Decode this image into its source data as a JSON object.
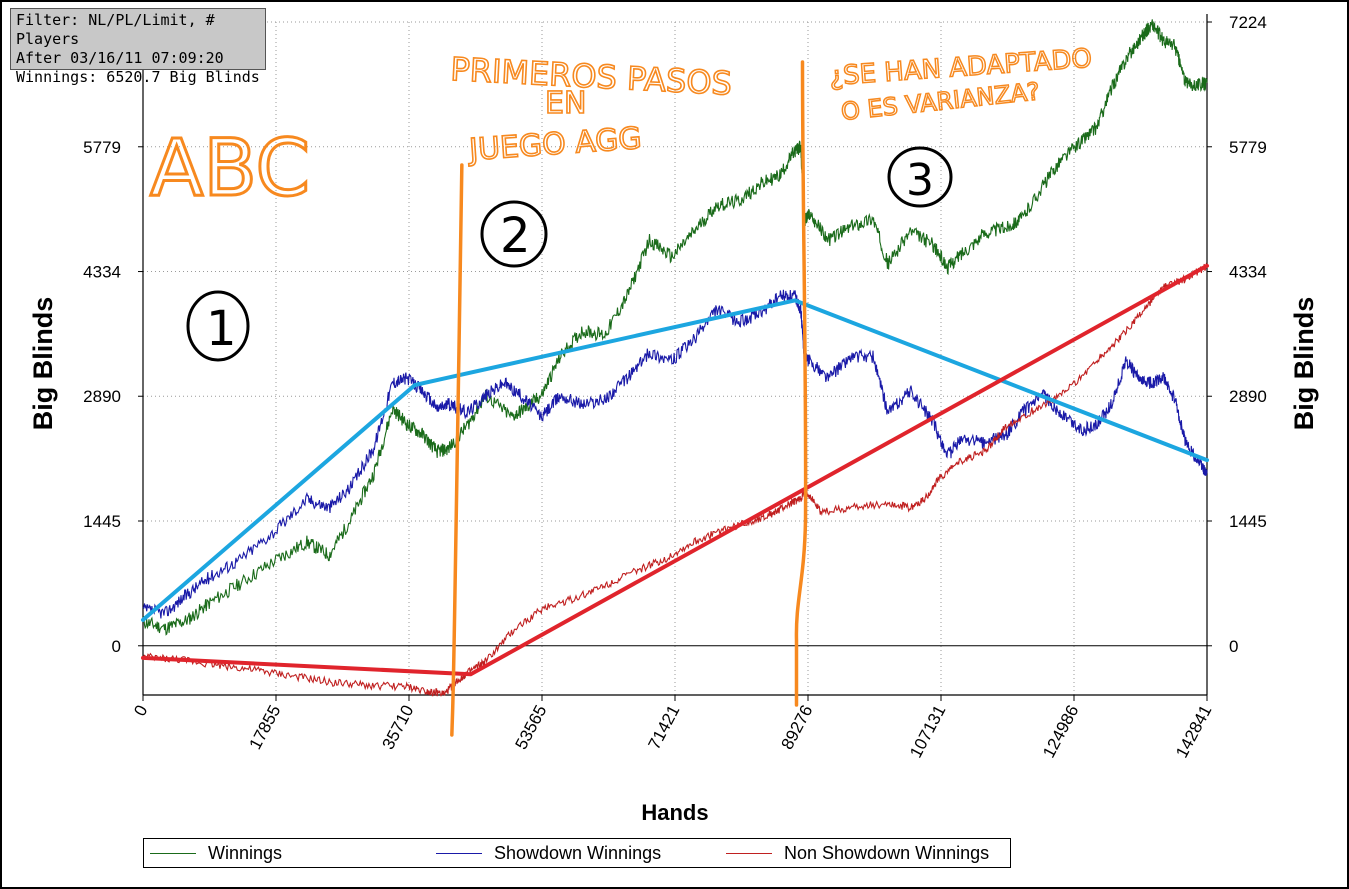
{
  "filter_box": {
    "line1": "Filter: NL/PL/Limit, # Players",
    "line2": "After 03/16/11 07:09:20",
    "line3": "Winnings: 6520.7 Big Blinds"
  },
  "annotations": {
    "abc": "ABC",
    "circle1": "1",
    "circle2": "2",
    "circle3": "3",
    "phase2_line1": "PRIMEROS PASOS",
    "phase2_line2": "EN",
    "phase2_line3": "JUEGO AGG",
    "phase3_line1": "¿SE HAN ADAPTADO",
    "phase3_line2": "O ES VARIANZA?"
  },
  "colors": {
    "winnings": "#1a6b1a",
    "showdown": "#1a1aa8",
    "non_showdown": "#c02020",
    "trend_blue": "#1ca6e0",
    "trend_red": "#e0242c",
    "marker_orange": "#f7891f"
  },
  "chart_data": {
    "type": "line",
    "xlabel": "Hands",
    "ylabel": "Big Blinds",
    "xlim": [
      0,
      142841
    ],
    "ylim": [
      -570,
      7224
    ],
    "x_ticks": [
      0,
      17855,
      35710,
      53565,
      71421,
      89276,
      107131,
      124986,
      142841
    ],
    "y_ticks": [
      0,
      1445,
      2890,
      4334,
      5779,
      7224
    ],
    "grid": true,
    "legend_position": "bottom",
    "series": [
      {
        "name": "Winnings",
        "x": [
          0,
          3000,
          6000,
          9000,
          13000,
          18000,
          22000,
          25000,
          28000,
          31000,
          33500,
          35500,
          37500,
          39500,
          41000,
          43500,
          46000,
          49500,
          51500,
          53500,
          56000,
          59000,
          62000,
          65000,
          68000,
          71000,
          74000,
          77000,
          80000,
          83000,
          85500,
          87500,
          88300,
          88800,
          89500,
          92000,
          95000,
          98000,
          100000,
          103000,
          106000,
          108000,
          110000,
          113000,
          116000,
          118000,
          121000,
          123000,
          126000,
          128000,
          130000,
          132000,
          134000,
          135500,
          137000,
          138500,
          140000,
          142000,
          142841
        ],
        "y": [
          280,
          200,
          300,
          500,
          720,
          1000,
          1200,
          1050,
          1480,
          2000,
          2750,
          2560,
          2450,
          2250,
          2280,
          2550,
          2900,
          2650,
          2760,
          2900,
          3350,
          3650,
          3600,
          4050,
          4700,
          4500,
          4800,
          5100,
          5150,
          5350,
          5450,
          5730,
          5780,
          4920,
          5000,
          4700,
          4850,
          4950,
          4420,
          4800,
          4650,
          4380,
          4550,
          4780,
          4850,
          4950,
          5350,
          5600,
          5850,
          6000,
          6450,
          6800,
          7050,
          7200,
          7000,
          6950,
          6510,
          6500,
          6520
        ]
      },
      {
        "name": "Showdown Winnings",
        "x": [
          0,
          3000,
          6000,
          9000,
          13000,
          18000,
          22000,
          25000,
          28000,
          31000,
          33500,
          35500,
          37500,
          39500,
          41000,
          43500,
          46000,
          48500,
          51000,
          53500,
          56000,
          59000,
          62000,
          65000,
          68000,
          71000,
          74000,
          77000,
          80000,
          83000,
          85500,
          87500,
          88300,
          88800,
          89500,
          92000,
          95000,
          98000,
          100000,
          103000,
          106000,
          108000,
          110000,
          113000,
          116000,
          118000,
          121000,
          123000,
          126000,
          128000,
          130000,
          132000,
          134000,
          135500,
          137000,
          138500,
          140000,
          142000,
          142841
        ],
        "y": [
          420,
          380,
          600,
          800,
          1000,
          1350,
          1700,
          1600,
          1850,
          2300,
          3050,
          3100,
          2950,
          2750,
          2800,
          2700,
          2900,
          3050,
          2880,
          2650,
          2900,
          2800,
          2850,
          3100,
          3400,
          3300,
          3550,
          3900,
          3750,
          3850,
          4050,
          4050,
          3900,
          3320,
          3300,
          3100,
          3350,
          3350,
          2700,
          2950,
          2600,
          2200,
          2400,
          2350,
          2450,
          2700,
          2900,
          2700,
          2500,
          2550,
          2800,
          3300,
          3050,
          3050,
          3100,
          2850,
          2350,
          2100,
          2000
        ]
      },
      {
        "name": "Non Showdown Winnings",
        "x": [
          0,
          5000,
          10000,
          15000,
          20000,
          25000,
          30000,
          35000,
          38000,
          40500,
          42000,
          43500,
          46000,
          50000,
          54000,
          58000,
          62000,
          66000,
          70000,
          74000,
          78000,
          82000,
          85000,
          87000,
          88300,
          89000,
          91000,
          95000,
          100000,
          103000,
          105000,
          107000,
          110000,
          113000,
          116000,
          120000,
          124000,
          128000,
          131000,
          134000,
          137000,
          140000,
          142841
        ],
        "y": [
          -130,
          -160,
          -220,
          -280,
          -350,
          -420,
          -460,
          -470,
          -520,
          -560,
          -420,
          -320,
          -180,
          200,
          450,
          550,
          700,
          860,
          1000,
          1200,
          1350,
          1450,
          1550,
          1650,
          1700,
          1800,
          1550,
          1600,
          1650,
          1600,
          1700,
          1950,
          2150,
          2250,
          2550,
          2750,
          2950,
          3300,
          3550,
          3850,
          4150,
          4250,
          4400
        ]
      }
    ],
    "trend_lines": [
      {
        "color": "blue",
        "x": [
          0,
          36500,
          87500,
          142841
        ],
        "y": [
          300,
          3020,
          4000,
          2150
        ]
      },
      {
        "color": "red",
        "x": [
          0,
          44000,
          142841
        ],
        "y": [
          -140,
          -330,
          4400
        ]
      }
    ],
    "markers": [
      {
        "color": "orange",
        "x": 42000
      },
      {
        "color": "orange",
        "x": 88000
      }
    ]
  },
  "legend": {
    "winnings": "Winnings",
    "showdown": "Showdown Winnings",
    "non_showdown": "Non Showdown Winnings"
  }
}
